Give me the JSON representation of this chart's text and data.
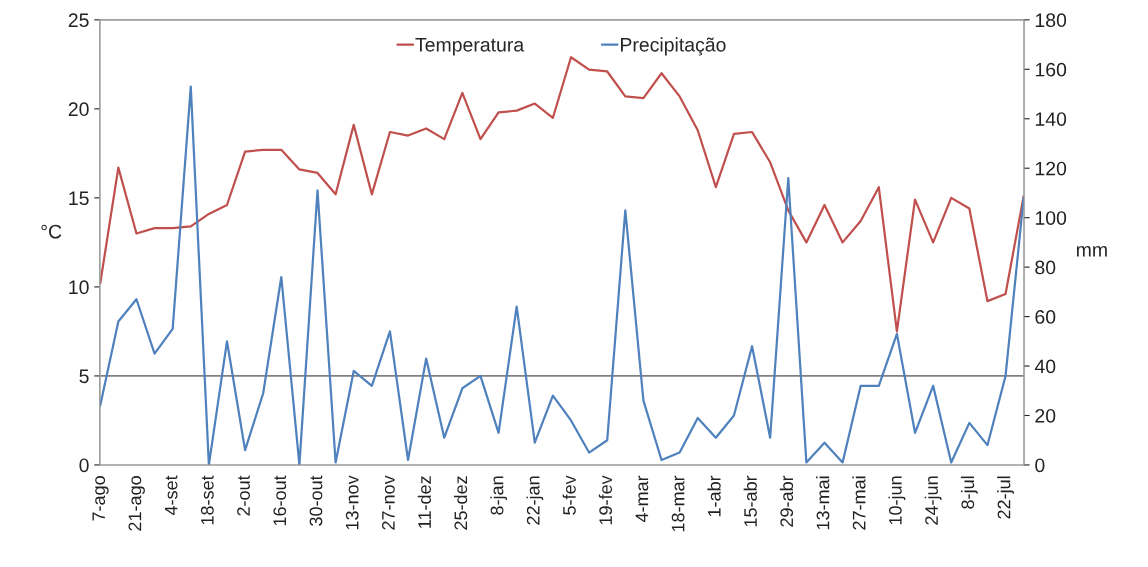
{
  "chart_data": {
    "type": "line",
    "ylabel": "°C",
    "y2label": "mm",
    "categories": [
      "7-ago",
      null,
      "21-ago",
      null,
      "4-set",
      null,
      "18-set",
      null,
      "2-out",
      null,
      "16-out",
      null,
      "30-out",
      null,
      "13-nov",
      null,
      "27-nov",
      null,
      "11-dez",
      null,
      "25-dez",
      null,
      "8-jan",
      null,
      "22-jan",
      null,
      "5-fev",
      null,
      "19-fev",
      null,
      "4-mar",
      null,
      "18-mar",
      null,
      "1-abr",
      null,
      "15-abr",
      null,
      "29-abr",
      null,
      "13-mai",
      null,
      "27-mai",
      null,
      "10-jun",
      null,
      "24-jun",
      null,
      "8-jul",
      null,
      "22-jul",
      null
    ],
    "series": [
      {
        "name": "Temperatura",
        "color": "#c0504d",
        "values": [
          10.2,
          16.7,
          13.0,
          13.3,
          13.3,
          13.4,
          14.1,
          14.6,
          17.6,
          17.7,
          17.7,
          16.6,
          16.4,
          15.2,
          19.1,
          15.2,
          18.7,
          18.5,
          18.9,
          18.3,
          20.9,
          18.3,
          19.8,
          19.9,
          20.3,
          19.5,
          22.9,
          22.2,
          22.1,
          20.7,
          20.6,
          22.0,
          20.7,
          18.8,
          15.6,
          18.6,
          18.7,
          17.0,
          14.3,
          12.5,
          14.6,
          12.5,
          13.7,
          15.6,
          7.5,
          14.9,
          12.5,
          15.0,
          14.4,
          9.2,
          9.6,
          15.1
        ]
      },
      {
        "name": "Precipitação",
        "color": "#4f81bd",
        "axis": "y2",
        "values": [
          24,
          58,
          67,
          45,
          55,
          153,
          0,
          50,
          6,
          29,
          76,
          0,
          111,
          1,
          38,
          32,
          54,
          2,
          43,
          11,
          31,
          36,
          13,
          64,
          9,
          28,
          18,
          5,
          10,
          103,
          26,
          2,
          5,
          19,
          11,
          20,
          48,
          11,
          116,
          1,
          9,
          1,
          32,
          32,
          53,
          13,
          32,
          1,
          17,
          8,
          36,
          108
        ]
      }
    ],
    "ylim": [
      0,
      25
    ],
    "yticks": [
      0,
      5,
      10,
      15,
      20,
      25
    ],
    "y2lim": [
      0,
      180
    ],
    "y2ticks": [
      0,
      20,
      40,
      60,
      80,
      100,
      120,
      140,
      160,
      180
    ],
    "ref_lines": [
      {
        "axis": "y",
        "value": 5,
        "color": "#808080"
      }
    ],
    "grid": false,
    "legend": "top",
    "marker": "none",
    "line_style": "solid"
  }
}
